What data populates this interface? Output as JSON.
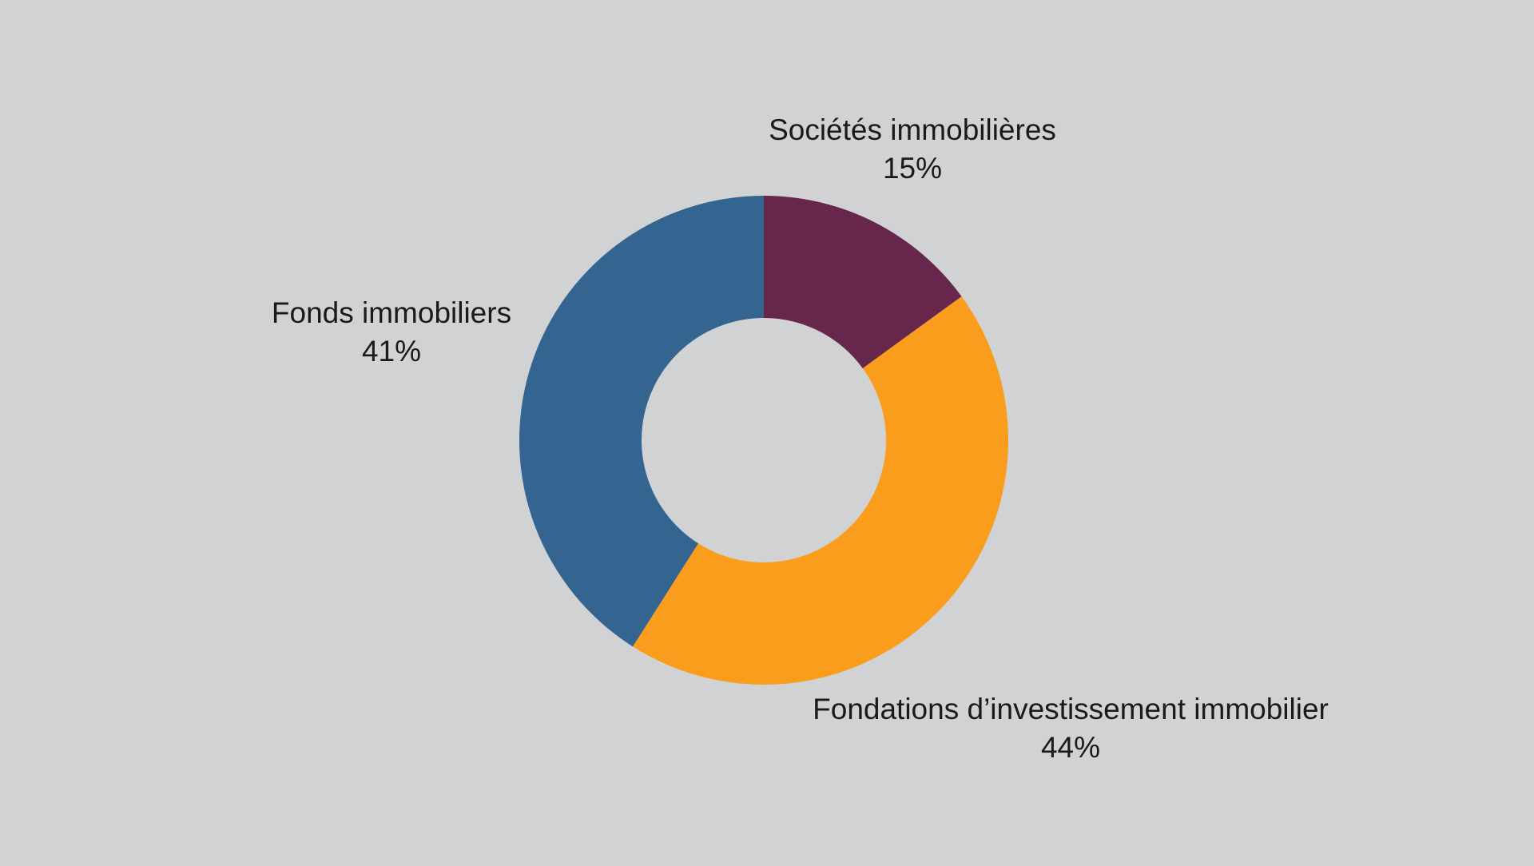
{
  "chart_data": {
    "type": "pie",
    "variant": "donut",
    "title": "",
    "categories": [
      "Sociétés immobilières",
      "Fondations d’investissement immobilier",
      "Fonds immobiliers"
    ],
    "values": [
      15,
      44,
      41
    ],
    "value_labels": [
      "15%",
      "44%",
      "41%"
    ],
    "colors": [
      "#67264c",
      "#fb9d1c",
      "#346590"
    ],
    "start_angle_deg": 0,
    "direction": "clockwise",
    "legend": "none",
    "labels_outside": true
  },
  "background_color": "#d1d2d4"
}
